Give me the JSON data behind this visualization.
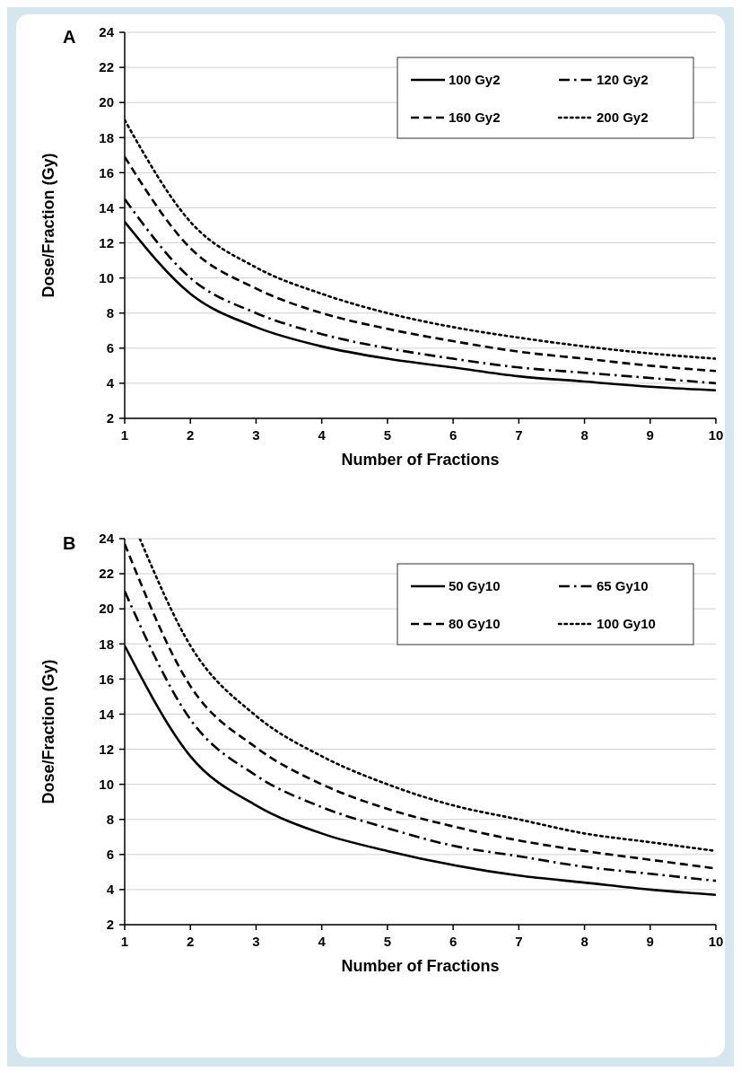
{
  "chart_data": [
    {
      "type": "line",
      "title": "A",
      "xlabel": "Number of Fractions",
      "ylabel": "Dose/Fraction (Gy)",
      "x": [
        1,
        2,
        3,
        4,
        5,
        6,
        7,
        8,
        9,
        10
      ],
      "xlim": [
        1,
        10
      ],
      "xticks": [
        1,
        2,
        3,
        4,
        5,
        6,
        7,
        8,
        9,
        10
      ],
      "ylim": [
        2,
        24
      ],
      "yticks": [
        2,
        4,
        6,
        8,
        10,
        12,
        14,
        16,
        18,
        20,
        22,
        24
      ],
      "grid": "y",
      "legend": "top right",
      "marker": "none",
      "series": [
        {
          "name": "100 Gy2",
          "color": "#000000",
          "line_style": "solid",
          "values": [
            13.2,
            9.1,
            7.2,
            6.1,
            5.4,
            4.9,
            4.4,
            4.1,
            3.8,
            3.6
          ]
        },
        {
          "name": "120 Gy2",
          "color": "#000000",
          "line_style": "dashdot",
          "values": [
            14.5,
            10,
            8,
            6.8,
            6,
            5.4,
            4.9,
            4.6,
            4.3,
            4
          ]
        },
        {
          "name": "160 Gy2",
          "color": "#000000",
          "line_style": "dashed",
          "values": [
            16.9,
            11.7,
            9.4,
            8,
            7.1,
            6.4,
            5.8,
            5.4,
            5,
            4.7
          ]
        },
        {
          "name": "200 Gy2",
          "color": "#000000",
          "line_style": "dotted",
          "values": [
            19,
            13.2,
            10.6,
            9.1,
            8,
            7.2,
            6.6,
            6.1,
            5.7,
            5.4
          ]
        }
      ]
    },
    {
      "type": "line",
      "title": "B",
      "xlabel": "Number of Fractions",
      "ylabel": "Dose/Fraction (Gy)",
      "x": [
        1,
        2,
        3,
        4,
        5,
        6,
        7,
        8,
        9,
        10
      ],
      "xlim": [
        1,
        10
      ],
      "xticks": [
        1,
        2,
        3,
        4,
        5,
        6,
        7,
        8,
        9,
        10
      ],
      "ylim": [
        2,
        24
      ],
      "yticks": [
        2,
        4,
        6,
        8,
        10,
        12,
        14,
        16,
        18,
        20,
        22,
        24
      ],
      "grid": "y",
      "legend": "top right",
      "marker": "none",
      "series": [
        {
          "name": "50 Gy10",
          "color": "#000000",
          "line_style": "solid",
          "values": [
            17.9,
            11.6,
            8.8,
            7.2,
            6.2,
            5.4,
            4.8,
            4.4,
            4,
            3.7
          ]
        },
        {
          "name": "65 Gy10",
          "color": "#000000",
          "line_style": "dashdot",
          "values": [
            21,
            13.7,
            10.5,
            8.7,
            7.5,
            6.5,
            5.9,
            5.3,
            4.9,
            4.5
          ]
        },
        {
          "name": "80 Gy10",
          "color": "#000000",
          "line_style": "dashed",
          "values": [
            23.7,
            15.6,
            12.1,
            10,
            8.6,
            7.6,
            6.8,
            6.2,
            5.7,
            5.2
          ]
        },
        {
          "name": "100 Gy10",
          "color": "#000000",
          "line_style": "dotted",
          "x": [
            1.23,
            2,
            3,
            4,
            5,
            6,
            7,
            8,
            9,
            10
          ],
          "values": [
            24,
            17.9,
            13.9,
            11.6,
            10,
            8.8,
            8,
            7.2,
            6.7,
            6.2
          ]
        }
      ]
    }
  ]
}
